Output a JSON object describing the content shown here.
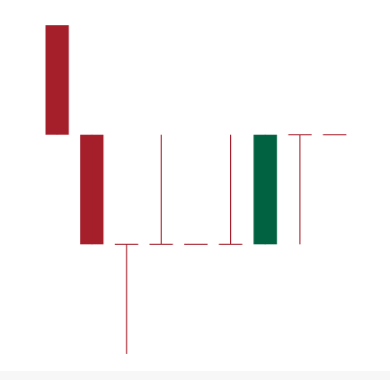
{
  "chart_data": {
    "type": "candlestick",
    "colors": {
      "bearish": "#a51f2b",
      "bullish": "#006241",
      "wick": "#a51f2b"
    },
    "candles": [
      {
        "index": 1,
        "open": 6,
        "high": 6,
        "low": 4,
        "close": 4
      },
      {
        "index": 2,
        "open": 4,
        "high": 4,
        "low": 2,
        "close": 2
      },
      {
        "index": 3,
        "open": 2,
        "high": 2,
        "low": 0,
        "close": 2
      },
      {
        "index": 4,
        "open": 2,
        "high": 4,
        "low": 2,
        "close": 2
      },
      {
        "index": 5,
        "open": 2,
        "high": 2,
        "low": 2,
        "close": 2
      },
      {
        "index": 6,
        "open": 2,
        "high": 4,
        "low": 2,
        "close": 2
      },
      {
        "index": 7,
        "open": 2,
        "high": 4,
        "low": 2,
        "close": 4
      },
      {
        "index": 8,
        "open": 4,
        "high": 4,
        "low": 2,
        "close": 4
      },
      {
        "index": 9,
        "open": 4,
        "high": 4,
        "low": 4,
        "close": 4
      }
    ],
    "ylim": [
      0,
      6.4
    ],
    "grid": false,
    "legend": false
  }
}
